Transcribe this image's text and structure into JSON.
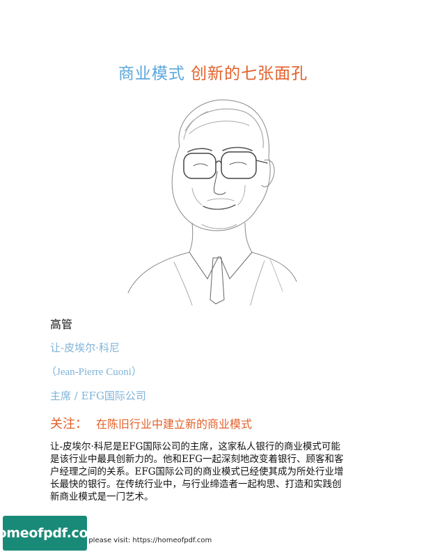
{
  "title": {
    "part_a": "商业模式",
    "part_b": "创新的七张面孔"
  },
  "profile": {
    "category": "高管",
    "name": "让-皮埃尔·科尼",
    "name_alt": "（Jean-Pierre Cuoni）",
    "role": "主席 / EFG国际公司"
  },
  "focus": {
    "label": "关注：",
    "text": "在陈旧行业中建立新的商业模式"
  },
  "bio_lines": [
    "让-皮埃尔·科尼是EFG国际公司的主席，这家私人银行的商业模式可能",
    "是该行业中最具创新力的。他和EFG一起深刻地改变着银行、顾客和客",
    "户经理之间的关系。EFG国际公司的商业模式已经使其成为所处行业增",
    "长最快的银行。在传统行业中，与行业缔造者一起构思、打造和实践创",
    "新商业模式是一门艺术。"
  ],
  "watermark": {
    "logo_text": "homeofpdf.com",
    "text": "e please visit: https://homeofpdf.com"
  },
  "colors": {
    "title_blue": "#5aa7dc",
    "title_orange": "#e2612a",
    "profile_blue": "#7fb3d9",
    "watermark_green": "#1a8a78"
  }
}
